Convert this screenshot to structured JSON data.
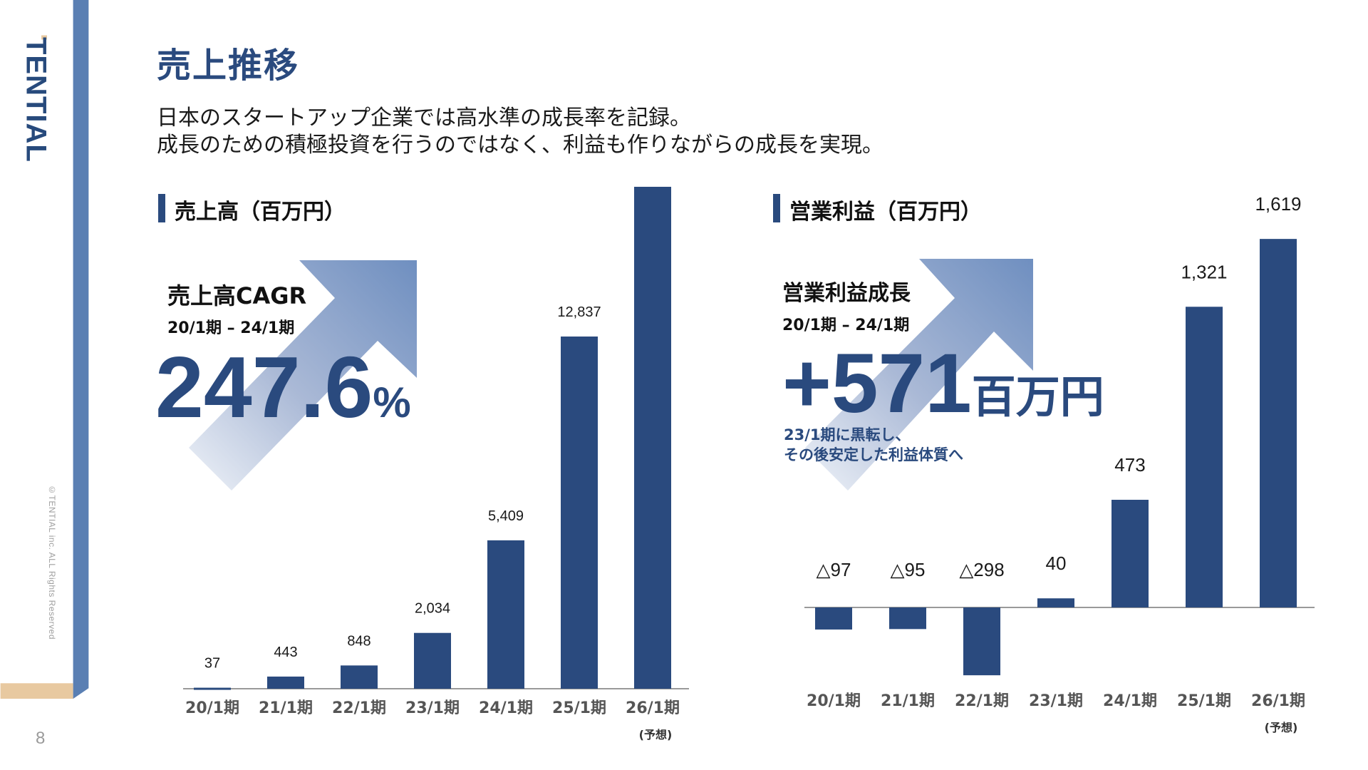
{
  "brand": {
    "logo_text": "TENTIAL",
    "copyright": "©TENTIAL inc. ALL Rights Reserved",
    "page_number": "8"
  },
  "slide": {
    "title": "売上推移",
    "lead_line_1": "日本のスタートアップ企業では高水準の成長率を記録。",
    "lead_line_2": "成長のための積極投資を行うのではなく、利益も作りながらの成長を実現。"
  },
  "colors": {
    "bar": "#2a4a7e",
    "title": "#2a4a7e",
    "sidebar": "#5a7fb3",
    "accent_beige": "#e8c9a0"
  },
  "revenue_panel": {
    "title": "売上高（百万円）",
    "highlight_label": "売上高CAGR",
    "highlight_period": "20/1期 – 24/1期",
    "highlight_value": "247.6",
    "highlight_unit": "%"
  },
  "profit_panel": {
    "title": "営業利益（百万円）",
    "highlight_label": "営業利益成長",
    "highlight_period": "20/1期 – 24/1期",
    "highlight_value": "+571",
    "highlight_unit": "百万円",
    "note_line_1": "23/1期に黒転し、",
    "note_line_2": "その後安定した利益体質へ"
  },
  "chart_data": [
    {
      "type": "bar",
      "title": "売上高（百万円）",
      "categories": [
        "20/1期",
        "21/1期",
        "22/1期",
        "23/1期",
        "24/1期",
        "25/1期",
        "26/1期"
      ],
      "values": [
        37,
        443,
        848,
        2034,
        5409,
        12837,
        null
      ],
      "labels": [
        "37",
        "443",
        "848",
        "2,034",
        "5,409",
        "12,837",
        ""
      ],
      "forecast_note": "(予想)",
      "forecast_index": 6
    },
    {
      "type": "bar",
      "title": "営業利益（百万円）",
      "categories": [
        "20/1期",
        "21/1期",
        "22/1期",
        "23/1期",
        "24/1期",
        "25/1期",
        "26/1期"
      ],
      "values": [
        -97,
        -95,
        -298,
        40,
        473,
        1321,
        1619
      ],
      "labels": [
        "△97",
        "△95",
        "△298",
        "40",
        "473",
        "1,321",
        "1,619"
      ],
      "forecast_note": "(予想)",
      "forecast_index": 6
    }
  ]
}
